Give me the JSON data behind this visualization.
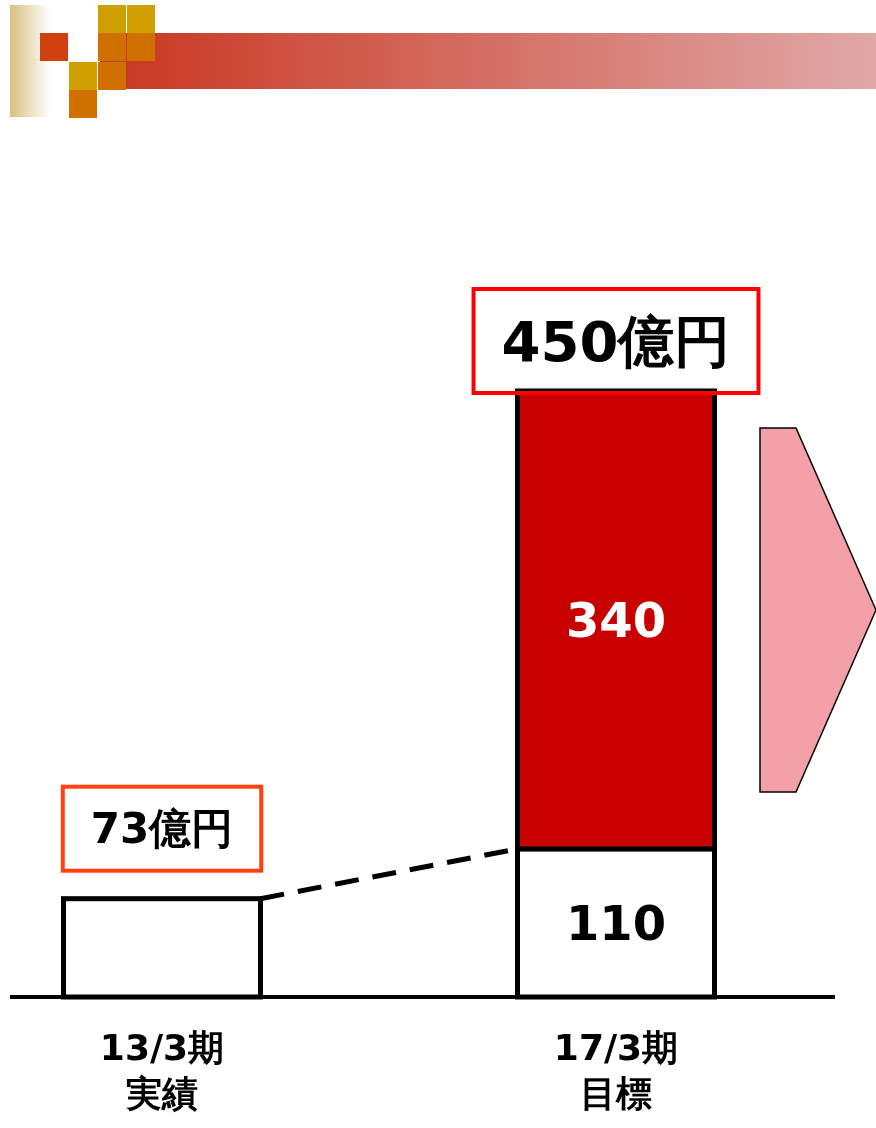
{
  "chart_data": {
    "type": "bar",
    "stacked": true,
    "categories": [
      "13/3期実績",
      "17/3期目標"
    ],
    "series": [
      {
        "color": "#ffffff",
        "values": [
          73,
          110
        ],
        "value_labels": [
          null,
          "110"
        ]
      },
      {
        "color": "#c80000",
        "values": [
          null,
          340
        ],
        "value_labels": [
          null,
          "340"
        ]
      }
    ],
    "totals": [
      "73億円",
      "450億円"
    ]
  }
}
